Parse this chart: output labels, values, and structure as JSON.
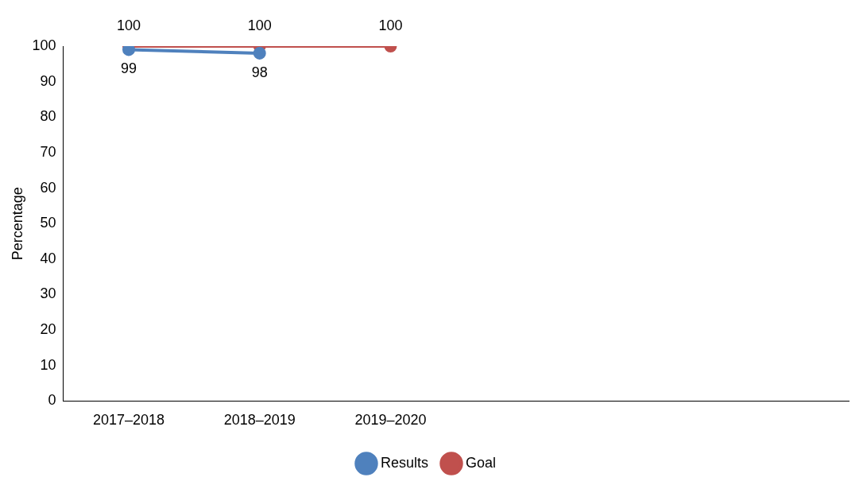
{
  "chart_data": {
    "type": "line",
    "ylabel": "Percentage",
    "categories": [
      "2017–2018",
      "2018–2019",
      "2019–2020",
      null,
      null,
      null
    ],
    "series": [
      {
        "name": "Results",
        "color": "#4f81bd",
        "values": [
          99,
          98,
          null,
          null,
          null,
          null
        ]
      },
      {
        "name": "Goal",
        "color": "#c0504d",
        "values": [
          100,
          100,
          100,
          null,
          null,
          null
        ]
      }
    ],
    "ylim": [
      0,
      100
    ],
    "yticks": [
      0,
      10,
      20,
      30,
      40,
      50,
      60,
      70,
      80,
      90,
      100
    ],
    "grid": false,
    "legend": "bottom",
    "marker": "circle",
    "data_labels": true
  }
}
